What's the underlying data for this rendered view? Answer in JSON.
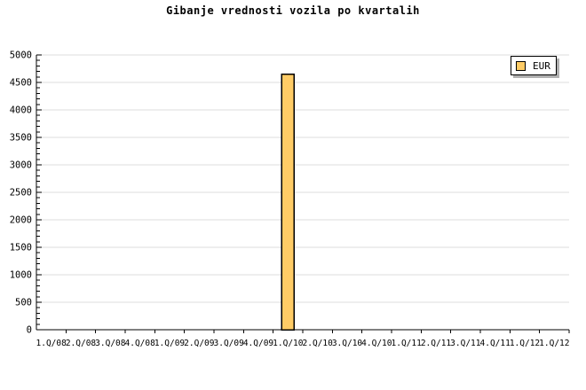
{
  "title": "Gibanje vrednosti vozila po kvartalih",
  "legend": {
    "label": "EUR"
  },
  "chart_data": {
    "type": "bar",
    "title": "Gibanje vrednosti vozila po kvartalih",
    "categories": [
      "1.Q/08",
      "2.Q/08",
      "3.Q/08",
      "4.Q/08",
      "1.Q/09",
      "2.Q/09",
      "3.Q/09",
      "4.Q/09",
      "1.Q/10",
      "2.Q/10",
      "3.Q/10",
      "4.Q/10",
      "1.Q/11",
      "2.Q/11",
      "3.Q/11",
      "4.Q/11",
      "1.Q/12",
      "1.Q/12"
    ],
    "series": [
      {
        "name": "EUR",
        "values": [
          null,
          null,
          null,
          null,
          null,
          null,
          null,
          null,
          4650,
          null,
          null,
          null,
          null,
          null,
          null,
          null,
          null,
          null
        ]
      }
    ],
    "xlabel": "",
    "ylabel": "",
    "ylim": [
      0,
      5000
    ],
    "ytick_step": 500,
    "yminor_tick_step": 100,
    "ytick_labels": [
      "0",
      "500",
      "1000",
      "1500",
      "2000",
      "2500",
      "3000",
      "3500",
      "4000",
      "4500",
      "5000"
    ],
    "grid": "horizontal-major-only",
    "legend_position": "top-right",
    "colors": {
      "bar_fill": "#FFCC66",
      "bar_border": "#000000",
      "gridline": "#DEDEDE",
      "axis": "#000000",
      "text": "#000000",
      "legend_background": "#FFFFFF",
      "legend_border": "#000000",
      "legend_shadow": "#B0B0B0",
      "background": "#FFFFFF"
    }
  }
}
